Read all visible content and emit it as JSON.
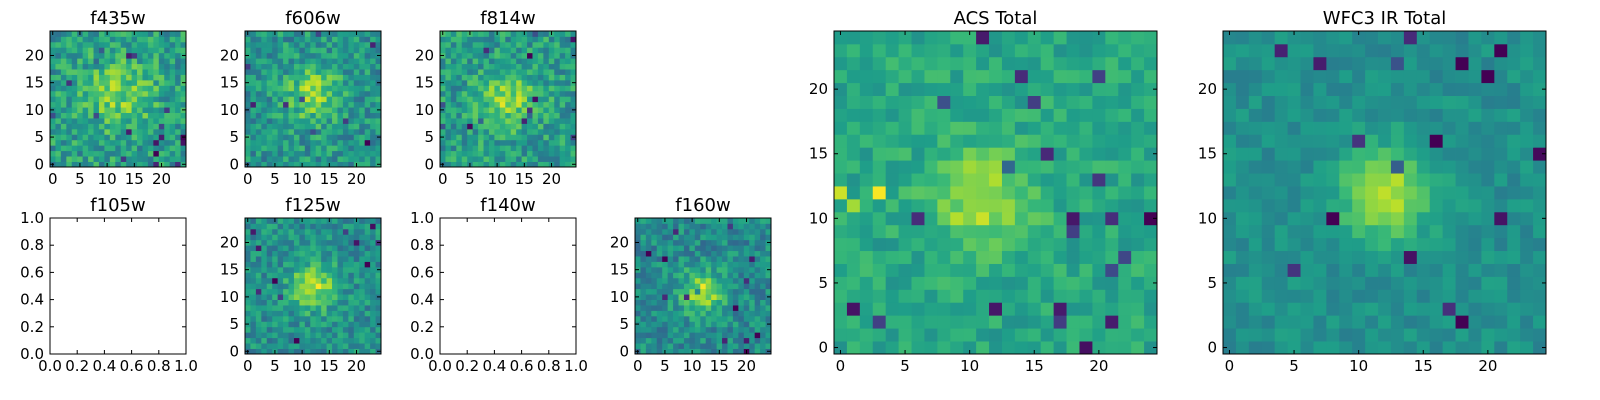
{
  "colors": {
    "colormap": "viridis",
    "frame": "#000000",
    "background": "#ffffff"
  },
  "chart_data": [
    {
      "id": "f435w",
      "type": "heatmap",
      "title": "f435w",
      "grid_size": [
        25,
        25
      ],
      "empty": false,
      "xticks": [
        0,
        5,
        10,
        15,
        20
      ],
      "yticks": [
        0,
        5,
        10,
        15,
        20
      ],
      "xlim": [
        -0.5,
        24.5
      ],
      "ylim": [
        -0.5,
        24.5
      ],
      "source": {
        "center": [
          12,
          13
        ],
        "sigma": 4.5,
        "amp": 0.25
      },
      "noise": 0.36,
      "base": 0.55,
      "seed": 435,
      "spots": []
    },
    {
      "id": "f606w",
      "type": "heatmap",
      "title": "f606w",
      "grid_size": [
        25,
        25
      ],
      "empty": false,
      "xticks": [
        0,
        5,
        10,
        15,
        20
      ],
      "yticks": [
        0,
        5,
        10,
        15,
        20
      ],
      "xlim": [
        -0.5,
        24.5
      ],
      "ylim": [
        -0.5,
        24.5
      ],
      "source": {
        "center": [
          12,
          13
        ],
        "sigma": 3.5,
        "amp": 0.3
      },
      "noise": 0.34,
      "base": 0.52,
      "seed": 606,
      "spots": []
    },
    {
      "id": "f814w",
      "type": "heatmap",
      "title": "f814w",
      "grid_size": [
        25,
        25
      ],
      "empty": false,
      "xticks": [
        0,
        5,
        10,
        15,
        20
      ],
      "yticks": [
        0,
        5,
        10,
        15,
        20
      ],
      "xlim": [
        -0.5,
        24.5
      ],
      "ylim": [
        -0.5,
        24.5
      ],
      "source": {
        "center": [
          12,
          12
        ],
        "sigma": 3.5,
        "amp": 0.3
      },
      "noise": 0.34,
      "base": 0.55,
      "seed": 814,
      "spots": []
    },
    {
      "id": "f105w",
      "type": "empty",
      "title": "f105w",
      "empty": true,
      "xticks": [
        "0.0",
        "0.2",
        "0.4",
        "0.6",
        "0.8",
        "1.0"
      ],
      "yticks": [
        "0.0",
        "0.2",
        "0.4",
        "0.6",
        "0.8",
        "1.0"
      ],
      "xlim": [
        0,
        1
      ],
      "ylim": [
        0,
        1
      ]
    },
    {
      "id": "f125w",
      "type": "heatmap",
      "title": "f125w",
      "grid_size": [
        25,
        25
      ],
      "empty": false,
      "xticks": [
        0,
        5,
        10,
        15,
        20
      ],
      "yticks": [
        0,
        5,
        10,
        15,
        20
      ],
      "xlim": [
        -0.5,
        24.5
      ],
      "ylim": [
        -0.5,
        24.5
      ],
      "source": {
        "center": [
          12,
          12
        ],
        "sigma": 3.0,
        "amp": 0.38
      },
      "noise": 0.3,
      "base": 0.5,
      "seed": 125,
      "spots": [
        [
          20,
          20,
          -0.5
        ],
        [
          18,
          22,
          -0.4
        ],
        [
          22,
          16,
          -0.4
        ]
      ]
    },
    {
      "id": "f140w",
      "type": "empty",
      "title": "f140w",
      "empty": true,
      "xticks": [
        "0.0",
        "0.2",
        "0.4",
        "0.6",
        "0.8",
        "1.0"
      ],
      "yticks": [
        "0.0",
        "0.2",
        "0.4",
        "0.6",
        "0.8",
        "1.0"
      ],
      "xlim": [
        0,
        1
      ],
      "ylim": [
        0,
        1
      ]
    },
    {
      "id": "f160w",
      "type": "heatmap",
      "title": "f160w",
      "grid_size": [
        25,
        25
      ],
      "empty": false,
      "xticks": [
        0,
        5,
        10,
        15,
        20
      ],
      "yticks": [
        0,
        5,
        10,
        15,
        20
      ],
      "xlim": [
        -0.5,
        24.5
      ],
      "ylim": [
        -0.5,
        24.5
      ],
      "source": {
        "center": [
          12,
          11
        ],
        "sigma": 2.8,
        "amp": 0.38
      },
      "noise": 0.3,
      "base": 0.48,
      "seed": 160,
      "spots": [
        [
          20,
          2,
          -0.5
        ],
        [
          22,
          3,
          -0.5
        ],
        [
          17,
          23,
          -0.4
        ],
        [
          7,
          22,
          -0.3
        ]
      ]
    },
    {
      "id": "acs-total",
      "type": "heatmap",
      "title": "ACS Total",
      "grid_size": [
        25,
        25
      ],
      "empty": false,
      "xticks": [
        0,
        5,
        10,
        15,
        20
      ],
      "yticks": [
        0,
        5,
        10,
        15,
        20
      ],
      "xlim": [
        -0.5,
        24.5
      ],
      "ylim": [
        -0.5,
        24.5
      ],
      "source": {
        "center": [
          11,
          11.5
        ],
        "sigma": 2.6,
        "amp": 0.3
      },
      "noise": 0.2,
      "base": 0.6,
      "seed": 7,
      "spots": [
        [
          11,
          24,
          -0.6
        ],
        [
          14,
          21,
          -0.55
        ],
        [
          15,
          19,
          -0.5
        ],
        [
          20,
          13,
          -0.5
        ],
        [
          19,
          0,
          -0.6
        ],
        [
          24,
          10,
          -0.5
        ],
        [
          21,
          2,
          -0.45
        ],
        [
          8,
          19,
          -0.3
        ],
        [
          3,
          12,
          0.3
        ],
        [
          0,
          12,
          0.35
        ],
        [
          1,
          11,
          0.3
        ]
      ]
    },
    {
      "id": "wfc3-ir-total",
      "type": "heatmap",
      "title": "WFC3 IR Total",
      "grid_size": [
        25,
        25
      ],
      "empty": false,
      "xticks": [
        0,
        5,
        10,
        15,
        20
      ],
      "yticks": [
        0,
        5,
        10,
        15,
        20
      ],
      "xlim": [
        -0.5,
        24.5
      ],
      "ylim": [
        -0.5,
        24.5
      ],
      "source": {
        "center": [
          12,
          12
        ],
        "sigma": 2.4,
        "amp": 0.42
      },
      "noise": 0.15,
      "base": 0.5,
      "seed": 31,
      "spots": [
        [
          8,
          10,
          -0.6
        ],
        [
          18,
          22,
          -0.6
        ],
        [
          20,
          21,
          -0.5
        ],
        [
          16,
          16,
          -0.55
        ],
        [
          18,
          2,
          -0.55
        ],
        [
          17,
          3,
          -0.4
        ],
        [
          5,
          6,
          -0.4
        ],
        [
          24,
          15,
          -0.5
        ],
        [
          13,
          22,
          -0.3
        ]
      ]
    }
  ]
}
